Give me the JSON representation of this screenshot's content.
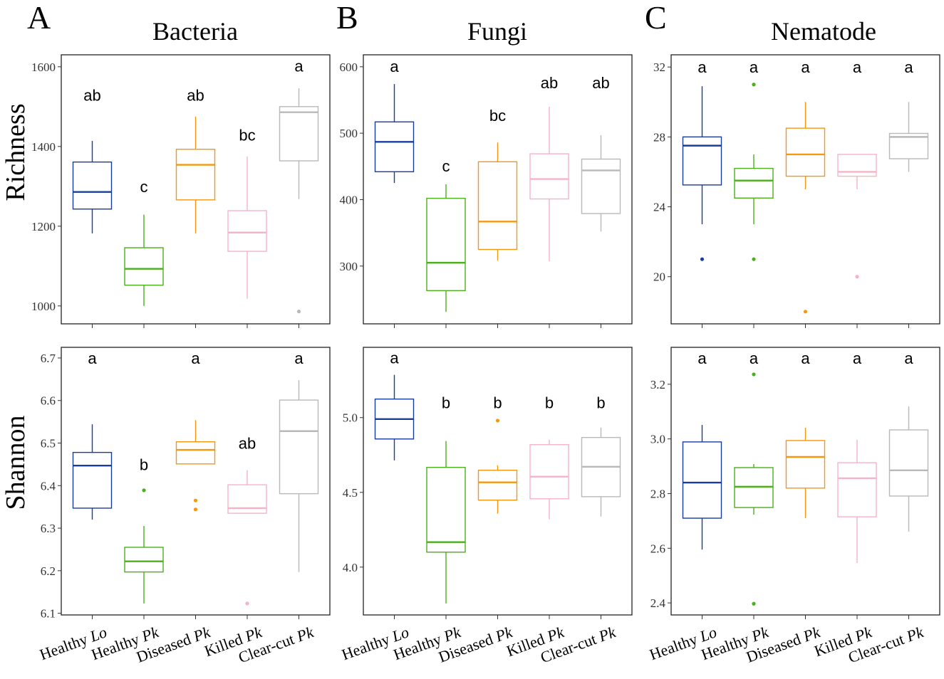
{
  "panel_labels": [
    "A",
    "B",
    "C"
  ],
  "column_titles": [
    "Bacteria",
    "Fungi",
    "Nematode"
  ],
  "row_labels": [
    "Richness",
    "Shannon"
  ],
  "categories": [
    [
      "Healthy",
      "Lo"
    ],
    [
      "Healthy",
      "Pk"
    ],
    [
      "Diseased",
      "Pk"
    ],
    [
      "Killed",
      "Pk"
    ],
    [
      "Clear-cut",
      "Pk"
    ]
  ],
  "colors": [
    "#1a3d9c",
    "#4caf1c",
    "#f5980f",
    "#f5b3c6",
    "#b9b9b9"
  ],
  "chart_data": [
    {
      "type": "box",
      "title": "Bacteria",
      "ylabel": "Richness",
      "ylim": [
        955,
        1630
      ],
      "yticks": [
        1000,
        1200,
        1400,
        1600
      ],
      "boxes": [
        {
          "min": 1182,
          "q1": 1243,
          "median": 1286,
          "q3": 1361,
          "max": 1414,
          "outliers": [],
          "letter": "ab",
          "letter_y": 1529
        },
        {
          "min": 1000,
          "q1": 1052,
          "median": 1093,
          "q3": 1146,
          "max": 1229,
          "outliers": [],
          "letter": "c",
          "letter_y": 1300
        },
        {
          "min": 1182,
          "q1": 1266,
          "median": 1354,
          "q3": 1393,
          "max": 1475,
          "outliers": [],
          "letter": "ab",
          "letter_y": 1529
        },
        {
          "min": 1018,
          "q1": 1137,
          "median": 1184,
          "q3": 1239,
          "max": 1375,
          "outliers": [],
          "letter": "bc",
          "letter_y": 1429
        },
        {
          "min": 1268,
          "q1": 1364,
          "median": 1486,
          "q3": 1500,
          "max": 1546,
          "outliers": [
            986
          ],
          "letter": "a",
          "letter_y": 1602
        }
      ]
    },
    {
      "type": "box",
      "title": "Fungi",
      "ylabel": "Richness",
      "ylim": [
        213,
        618
      ],
      "yticks": [
        300,
        400,
        500,
        600
      ],
      "boxes": [
        {
          "min": 425,
          "q1": 442,
          "median": 487,
          "q3": 517,
          "max": 574,
          "outliers": [],
          "letter": "a",
          "letter_y": 601
        },
        {
          "min": 231,
          "q1": 263,
          "median": 305,
          "q3": 402,
          "max": 423,
          "outliers": [],
          "letter": "c",
          "letter_y": 451
        },
        {
          "min": 308,
          "q1": 325,
          "median": 367,
          "q3": 457,
          "max": 486,
          "outliers": [],
          "letter": "bc",
          "letter_y": 527
        },
        {
          "min": 307,
          "q1": 401,
          "median": 431,
          "q3": 469,
          "max": 540,
          "outliers": [],
          "letter": "ab",
          "letter_y": 576
        },
        {
          "min": 352,
          "q1": 379,
          "median": 444,
          "q3": 461,
          "max": 497,
          "outliers": [],
          "letter": "ab",
          "letter_y": 576
        }
      ]
    },
    {
      "type": "box",
      "title": "Nematode",
      "ylabel": "Richness",
      "ylim": [
        17.3,
        32.7
      ],
      "yticks": [
        20,
        24,
        28,
        32
      ],
      "boxes": [
        {
          "min": 23.0,
          "q1": 25.25,
          "median": 27.5,
          "q3": 28.0,
          "max": 30.9,
          "outliers": [
            21.0
          ],
          "letter": "a",
          "letter_y": 32.0
        },
        {
          "min": 23.0,
          "q1": 24.5,
          "median": 25.5,
          "q3": 26.2,
          "max": 27.0,
          "outliers": [
            31.0,
            21.0
          ],
          "letter": "a",
          "letter_y": 32.0
        },
        {
          "min": 25.0,
          "q1": 25.75,
          "median": 27.0,
          "q3": 28.5,
          "max": 30.0,
          "outliers": [
            18.0
          ],
          "letter": "a",
          "letter_y": 32.0
        },
        {
          "min": 25.0,
          "q1": 25.75,
          "median": 26.0,
          "q3": 27.0,
          "max": 27.0,
          "outliers": [
            20.0
          ],
          "letter": "a",
          "letter_y": 32.0
        },
        {
          "min": 26.0,
          "q1": 26.75,
          "median": 28.0,
          "q3": 28.2,
          "max": 30.0,
          "outliers": [],
          "letter": "a",
          "letter_y": 32.0
        }
      ]
    },
    {
      "type": "box",
      "title": "Bacteria",
      "ylabel": "Shannon",
      "ylim": [
        6.096,
        6.725
      ],
      "yticks": [
        6.1,
        6.2,
        6.3,
        6.4,
        6.5,
        6.6,
        6.7
      ],
      "boxes": [
        {
          "min": 6.32,
          "q1": 6.347,
          "median": 6.447,
          "q3": 6.478,
          "max": 6.544,
          "outliers": [],
          "letter": "a",
          "letter_y": 6.7
        },
        {
          "min": 6.123,
          "q1": 6.197,
          "median": 6.222,
          "q3": 6.255,
          "max": 6.305,
          "outliers": [
            6.389
          ],
          "letter": "b",
          "letter_y": 6.45
        },
        {
          "min": 6.451,
          "q1": 6.451,
          "median": 6.484,
          "q3": 6.503,
          "max": 6.554,
          "outliers": [
            6.365,
            6.344
          ],
          "letter": "a",
          "letter_y": 6.7
        },
        {
          "min": 6.335,
          "q1": 6.335,
          "median": 6.347,
          "q3": 6.402,
          "max": 6.436,
          "outliers": [
            6.123
          ],
          "letter": "ab",
          "letter_y": 6.5
        },
        {
          "min": 6.197,
          "q1": 6.381,
          "median": 6.528,
          "q3": 6.601,
          "max": 6.648,
          "outliers": [],
          "letter": "a",
          "letter_y": 6.7
        }
      ]
    },
    {
      "type": "box",
      "title": "Fungi",
      "ylabel": "Shannon",
      "ylim": [
        3.68,
        5.47
      ],
      "yticks": [
        4.0,
        4.5,
        5.0
      ],
      "boxes": [
        {
          "min": 4.714,
          "q1": 4.857,
          "median": 4.99,
          "q3": 5.124,
          "max": 5.286,
          "outliers": [],
          "letter": "a",
          "letter_y": 5.4
        },
        {
          "min": 3.757,
          "q1": 4.1,
          "median": 4.167,
          "q3": 4.667,
          "max": 4.843,
          "outliers": [],
          "letter": "b",
          "letter_y": 5.1
        },
        {
          "min": 4.357,
          "q1": 4.448,
          "median": 4.567,
          "q3": 4.648,
          "max": 4.681,
          "outliers": [
            4.98
          ],
          "letter": "b",
          "letter_y": 5.1
        },
        {
          "min": 4.319,
          "q1": 4.457,
          "median": 4.605,
          "q3": 4.819,
          "max": 4.852,
          "outliers": [],
          "letter": "b",
          "letter_y": 5.1
        },
        {
          "min": 4.338,
          "q1": 4.471,
          "median": 4.671,
          "q3": 4.867,
          "max": 4.933,
          "outliers": [],
          "letter": "b",
          "letter_y": 5.1
        }
      ]
    },
    {
      "type": "box",
      "title": "Nematode",
      "ylabel": "Shannon",
      "ylim": [
        2.356,
        3.335
      ],
      "yticks": [
        2.4,
        2.6,
        2.8,
        3.0,
        3.2
      ],
      "boxes": [
        {
          "min": 2.595,
          "q1": 2.71,
          "median": 2.84,
          "q3": 2.989,
          "max": 3.051,
          "outliers": [],
          "letter": "a",
          "letter_y": 3.296
        },
        {
          "min": 2.723,
          "q1": 2.749,
          "median": 2.825,
          "q3": 2.895,
          "max": 2.908,
          "outliers": [
            3.236,
            2.397
          ],
          "letter": "a",
          "letter_y": 3.296
        },
        {
          "min": 2.71,
          "q1": 2.82,
          "median": 2.934,
          "q3": 2.994,
          "max": 3.041,
          "outliers": [],
          "letter": "a",
          "letter_y": 3.296
        },
        {
          "min": 2.546,
          "q1": 2.715,
          "median": 2.856,
          "q3": 2.913,
          "max": 2.997,
          "outliers": [],
          "letter": "a",
          "letter_y": 3.296
        },
        {
          "min": 2.661,
          "q1": 2.791,
          "median": 2.885,
          "q3": 3.033,
          "max": 3.119,
          "outliers": [],
          "letter": "a",
          "letter_y": 3.296
        }
      ]
    }
  ]
}
